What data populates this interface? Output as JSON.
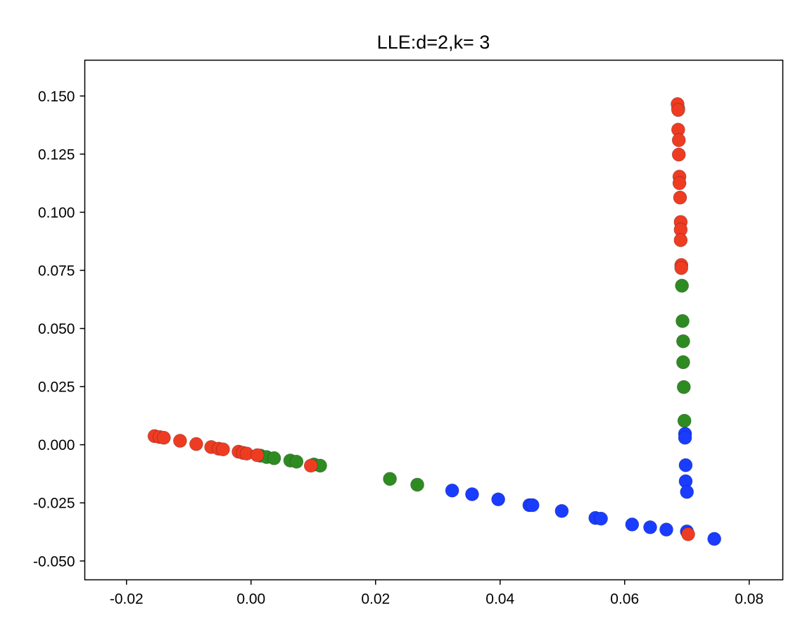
{
  "chart_data": {
    "type": "scatter",
    "title": "LLE:d=2,k= 3",
    "xlabel": "",
    "ylabel": "",
    "xlim": [
      -0.0267,
      0.0854
    ],
    "ylim": [
      -0.0581,
      0.1654
    ],
    "grid": false,
    "legend": "none",
    "xticks": [
      -0.02,
      0.0,
      0.02,
      0.04,
      0.06,
      0.08
    ],
    "xtick_labels": [
      "-0.02",
      "0.00",
      "0.02",
      "0.04",
      "0.06",
      "0.08"
    ],
    "yticks": [
      -0.05,
      -0.025,
      0.0,
      0.025,
      0.05,
      0.075,
      0.1,
      0.125,
      0.15
    ],
    "ytick_labels": [
      "-0.050",
      "-0.025",
      "0.000",
      "0.025",
      "0.050",
      "0.075",
      "0.100",
      "0.125",
      "0.150"
    ],
    "series": [
      {
        "name": "green",
        "color": "#2e8b22",
        "points": [
          [
            0.0015,
            -0.0047
          ],
          [
            0.0025,
            -0.0053
          ],
          [
            0.0037,
            -0.0058
          ],
          [
            0.0063,
            -0.0068
          ],
          [
            0.0073,
            -0.0073
          ],
          [
            0.0101,
            -0.0085
          ],
          [
            0.0111,
            -0.009
          ],
          [
            0.0223,
            -0.0147
          ],
          [
            0.0267,
            -0.0172
          ],
          [
            0.0692,
            0.0684
          ],
          [
            0.0693,
            0.0532
          ],
          [
            0.0694,
            0.0445
          ],
          [
            0.0694,
            0.0355
          ],
          [
            0.0695,
            0.0248
          ],
          [
            0.0696,
            0.0103
          ],
          [
            0.0686,
            0.1445
          ]
        ]
      },
      {
        "name": "blue",
        "color": "#1a3cff",
        "points": [
          [
            0.0323,
            -0.0197
          ],
          [
            0.0355,
            -0.0213
          ],
          [
            0.0397,
            -0.0235
          ],
          [
            0.0447,
            -0.026
          ],
          [
            0.0452,
            -0.026
          ],
          [
            0.0499,
            -0.0285
          ],
          [
            0.0553,
            -0.0315
          ],
          [
            0.0562,
            -0.0318
          ],
          [
            0.0612,
            -0.0343
          ],
          [
            0.0641,
            -0.0355
          ],
          [
            0.0667,
            -0.0365
          ],
          [
            0.07,
            -0.0373
          ],
          [
            0.0744,
            -0.0405
          ],
          [
            0.0697,
            0.0047
          ],
          [
            0.0697,
            0.003
          ],
          [
            0.0698,
            -0.0088
          ],
          [
            0.0698,
            -0.0157
          ],
          [
            0.07,
            -0.0203
          ]
        ]
      },
      {
        "name": "red",
        "color": "#ee3c23",
        "points": [
          [
            -0.0155,
            0.0037
          ],
          [
            -0.0147,
            0.0033
          ],
          [
            -0.014,
            0.003
          ],
          [
            -0.0114,
            0.0017
          ],
          [
            -0.0088,
            0.0003
          ],
          [
            -0.0064,
            -0.001
          ],
          [
            -0.0052,
            -0.0017
          ],
          [
            -0.0045,
            -0.002
          ],
          [
            -0.002,
            -0.003
          ],
          [
            -0.0013,
            -0.0035
          ],
          [
            -0.0007,
            -0.0038
          ],
          [
            0.001,
            -0.0045
          ],
          [
            0.0096,
            -0.009
          ],
          [
            0.0702,
            -0.0385
          ],
          [
            0.0685,
            0.1465
          ],
          [
            0.0686,
            0.144
          ],
          [
            0.0686,
            0.1355
          ],
          [
            0.0687,
            0.131
          ],
          [
            0.0687,
            0.1248
          ],
          [
            0.0688,
            0.1153
          ],
          [
            0.0688,
            0.1125
          ],
          [
            0.0689,
            0.1063
          ],
          [
            0.069,
            0.0958
          ],
          [
            0.069,
            0.0925
          ],
          [
            0.069,
            0.088
          ],
          [
            0.0691,
            0.0773
          ],
          [
            0.0691,
            0.076
          ]
        ]
      }
    ]
  }
}
